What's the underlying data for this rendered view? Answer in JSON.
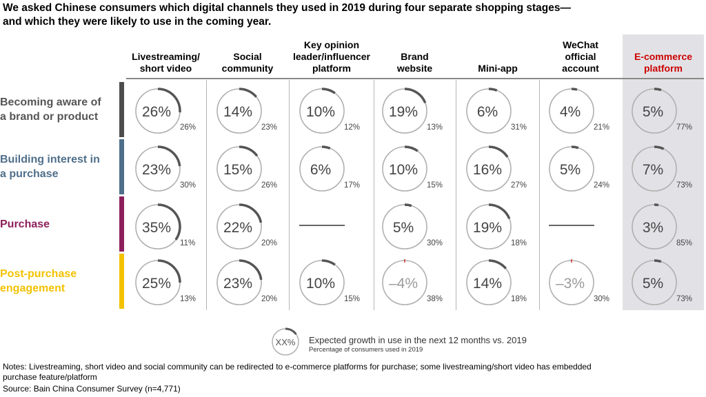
{
  "title": {
    "line1": "We asked Chinese consumers which digital channels they used in 2019 during four separate shopping stages—",
    "line2": "and which they were likely to use in the coming year."
  },
  "colors": {
    "ring": "#b0b0b0",
    "arc": "#555555",
    "negative_arc": "#cc3333",
    "ecommerce_header": "#cc0000",
    "ecommerce_bg": "#e2e2e6"
  },
  "columns": [
    {
      "lines": [
        "Livestreaming/",
        "short video"
      ]
    },
    {
      "lines": [
        "Social",
        "community"
      ]
    },
    {
      "lines": [
        "Key opinion",
        "leader/influencer",
        "platform"
      ]
    },
    {
      "lines": [
        "Brand",
        "website"
      ]
    },
    {
      "lines": [
        "Mini-app"
      ]
    },
    {
      "lines": [
        "WeChat",
        "official",
        "account"
      ]
    },
    {
      "lines": [
        "E-commerce",
        "platform"
      ]
    }
  ],
  "stages": [
    {
      "lines": [
        "Becoming aware of",
        "a brand or product"
      ],
      "color": "#4d4d4d"
    },
    {
      "lines": [
        "Building interest in",
        "a purchase"
      ],
      "color": "#4f6f8a"
    },
    {
      "lines": [
        "Purchase"
      ],
      "color": "#8c1f5c"
    },
    {
      "lines": [
        "Post-purchase",
        "engagement"
      ],
      "color": "#f2c200"
    }
  ],
  "chart_data": {
    "type": "table",
    "title": "We asked Chinese consumers which digital channels they used in 2019 during four separate shopping stages—and which they were likely to use in the coming year.",
    "metric_center": "Expected growth in use in the next 12 months vs. 2019",
    "metric_corner": "Percentage of consumers used in 2019",
    "cells": [
      [
        {
          "growth": 26,
          "label": "26%",
          "used": "26%"
        },
        {
          "growth": 14,
          "label": "14%",
          "used": "23%"
        },
        {
          "growth": 10,
          "label": "10%",
          "used": "12%"
        },
        {
          "growth": 19,
          "label": "19%",
          "used": "13%"
        },
        {
          "growth": 6,
          "label": "6%",
          "used": "31%"
        },
        {
          "growth": 4,
          "label": "4%",
          "used": "21%"
        },
        {
          "growth": 5,
          "label": "5%",
          "used": "77%"
        }
      ],
      [
        {
          "growth": 23,
          "label": "23%",
          "used": "30%"
        },
        {
          "growth": 15,
          "label": "15%",
          "used": "26%"
        },
        {
          "growth": 6,
          "label": "6%",
          "used": "17%"
        },
        {
          "growth": 10,
          "label": "10%",
          "used": "15%"
        },
        {
          "growth": 16,
          "label": "16%",
          "used": "27%"
        },
        {
          "growth": 5,
          "label": "5%",
          "used": "24%"
        },
        {
          "growth": 7,
          "label": "7%",
          "used": "73%"
        }
      ],
      [
        {
          "growth": 35,
          "label": "35%",
          "used": "11%"
        },
        {
          "growth": 22,
          "label": "22%",
          "used": "20%"
        },
        null,
        {
          "growth": 5,
          "label": "5%",
          "used": "30%"
        },
        {
          "growth": 19,
          "label": "19%",
          "used": "18%"
        },
        null,
        {
          "growth": 3,
          "label": "3%",
          "used": "85%"
        }
      ],
      [
        {
          "growth": 25,
          "label": "25%",
          "used": "13%"
        },
        {
          "growth": 23,
          "label": "23%",
          "used": "20%"
        },
        {
          "growth": 10,
          "label": "10%",
          "used": "15%"
        },
        {
          "growth": -4,
          "label": "–4%",
          "used": "38%"
        },
        {
          "growth": 14,
          "label": "14%",
          "used": "18%"
        },
        {
          "growth": -3,
          "label": "–3%",
          "used": "30%"
        },
        {
          "growth": 5,
          "label": "5%",
          "used": "73%"
        }
      ]
    ]
  },
  "legend": {
    "symbol": "XX%",
    "text": "Expected growth in use in the next 12 months vs. 2019",
    "sub": "Percentage of consumers used in 2019"
  },
  "notes": {
    "line1": "Notes: Livestreaming, short video and social community can be redirected to e-commerce platforms for purchase; some livestreaming/short video has embedded",
    "line2": "purchase feature/platform",
    "source": "Source: Bain China Consumer Survey (n=4,771)"
  }
}
